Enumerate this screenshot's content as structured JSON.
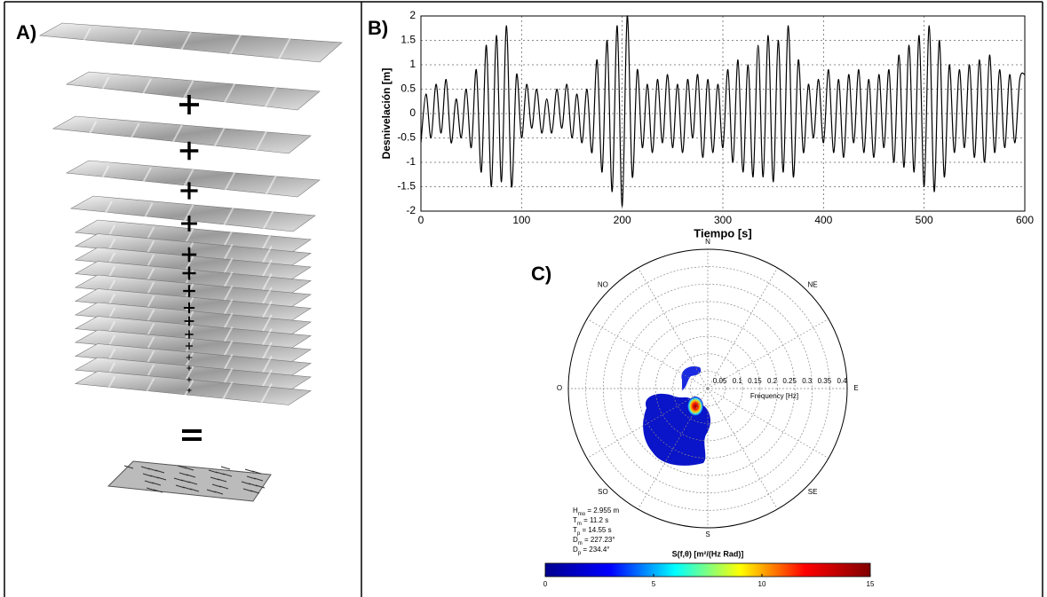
{
  "illustration": {
    "panel_label": "A)"
  },
  "chart_data": [
    {
      "type": "line",
      "panel_label": "B)",
      "xlabel": "Tiempo [s]",
      "ylabel": "Desnivelación [m]",
      "color": "#000000",
      "grid": true,
      "xlim": [
        0,
        600
      ],
      "ylim": [
        -2,
        2
      ],
      "xticks": [
        0,
        100,
        200,
        300,
        400,
        500,
        600
      ],
      "yticks": [
        -2,
        -1.5,
        -1,
        -0.5,
        0,
        0.5,
        1,
        1.5,
        2
      ],
      "x": [
        0,
        5,
        10,
        15,
        20,
        25,
        30,
        35,
        40,
        45,
        50,
        55,
        60,
        65,
        70,
        75,
        80,
        85,
        90,
        95,
        100,
        105,
        110,
        115,
        120,
        125,
        130,
        135,
        140,
        145,
        150,
        155,
        160,
        165,
        170,
        175,
        180,
        185,
        190,
        195,
        200,
        205,
        210,
        215,
        220,
        225,
        230,
        235,
        240,
        245,
        250,
        255,
        260,
        265,
        270,
        275,
        280,
        285,
        290,
        295,
        300,
        305,
        310,
        315,
        320,
        325,
        330,
        335,
        340,
        345,
        350,
        355,
        360,
        365,
        370,
        375,
        380,
        385,
        390,
        395,
        400,
        405,
        410,
        415,
        420,
        425,
        430,
        435,
        440,
        445,
        450,
        455,
        460,
        465,
        470,
        475,
        480,
        485,
        490,
        495,
        500,
        505,
        510,
        515,
        520,
        525,
        530,
        535,
        540,
        545,
        550,
        555,
        560,
        565,
        570,
        575,
        580,
        585,
        590,
        595,
        600
      ],
      "values": [
        -0.6,
        0.4,
        -0.5,
        0.6,
        -0.4,
        0.7,
        -0.6,
        0.3,
        -0.5,
        0.5,
        -0.7,
        0.9,
        -1.2,
        1.4,
        -1.5,
        1.6,
        -1.4,
        1.8,
        -1.5,
        0.8,
        -0.5,
        0.6,
        -0.3,
        0.5,
        -0.4,
        0.3,
        -0.4,
        0.5,
        -0.3,
        0.6,
        -0.5,
        0.4,
        -0.6,
        0.5,
        -0.8,
        1.1,
        -1.2,
        1.5,
        -1.6,
        1.8,
        -1.9,
        2.0,
        -1.3,
        0.9,
        -0.7,
        0.6,
        -0.8,
        0.7,
        -0.6,
        0.8,
        -0.7,
        0.6,
        -0.8,
        0.7,
        -0.5,
        0.8,
        -0.9,
        0.7,
        -0.8,
        0.6,
        -0.7,
        0.9,
        -1.0,
        1.1,
        -1.2,
        1.0,
        -1.3,
        1.4,
        -1.3,
        1.6,
        -1.4,
        1.5,
        -1.2,
        1.8,
        -1.3,
        1.1,
        -0.8,
        0.6,
        -0.5,
        0.7,
        -0.6,
        0.9,
        -0.8,
        0.7,
        -0.9,
        0.8,
        -0.6,
        0.9,
        -0.8,
        0.7,
        -0.9,
        0.8,
        -0.7,
        0.9,
        -1.0,
        1.2,
        -1.1,
        1.4,
        -1.2,
        1.6,
        -1.5,
        1.8,
        -1.6,
        1.5,
        -1.3,
        1.0,
        -0.8,
        0.9,
        -0.7,
        1.0,
        -0.9,
        1.1,
        -1.0,
        1.2,
        -0.8,
        0.9,
        -0.7,
        0.8,
        -0.6,
        0.7,
        0.8
      ]
    },
    {
      "type": "polar",
      "panel_label": "C)",
      "rlabel": "Frequency [Hz]",
      "rlim": [
        0,
        0.4
      ],
      "rticks": [
        0.05,
        0.1,
        0.15,
        0.2,
        0.25,
        0.3,
        0.35,
        0.4
      ],
      "directions": [
        "N",
        "NE",
        "E",
        "SE",
        "S",
        "SO",
        "O",
        "NO"
      ],
      "annotations": [
        {
          "symbol": "H",
          "sub": "mo",
          "text": " = 2.955 m"
        },
        {
          "symbol": "T",
          "sub": "m",
          "text": " = 11.2 s"
        },
        {
          "symbol": "T",
          "sub": "p",
          "text": " = 14.55 s"
        },
        {
          "symbol": "D",
          "sub": "m",
          "text": " = 227.23°"
        },
        {
          "symbol": "D",
          "sub": "p",
          "text": " = 234.4°"
        }
      ],
      "colorbar": {
        "label": "S(f,θ) [m²/(Hz Rad)]",
        "clim": [
          0,
          15
        ],
        "ticks": [
          0,
          5,
          10,
          15
        ],
        "colormap": "jet"
      }
    }
  ]
}
